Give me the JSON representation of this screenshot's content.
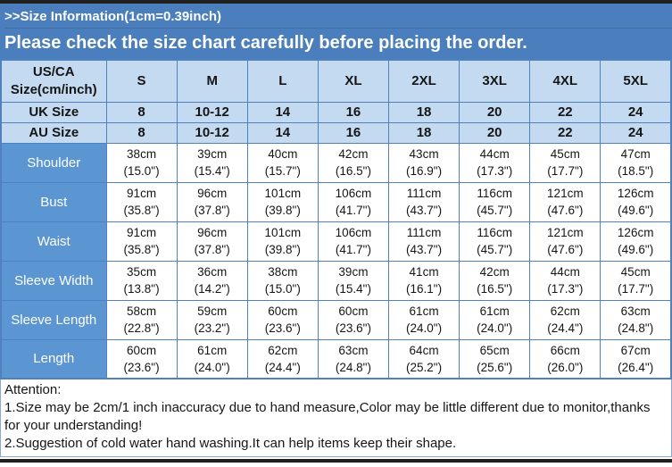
{
  "banner": {
    "title": ">>Size Information(1cm=0.39inch)",
    "subtitle": "Please check the size chart carefully before placing the order."
  },
  "table": {
    "corner_label": "US/CA Size(cm/inch)",
    "size_headers": [
      "S",
      "M",
      "L",
      "XL",
      "2XL",
      "3XL",
      "4XL",
      "5XL"
    ],
    "uk": {
      "label": "UK Size",
      "values": [
        "8",
        "10-12",
        "14",
        "16",
        "18",
        "20",
        "22",
        "24"
      ]
    },
    "au": {
      "label": "AU Size",
      "values": [
        "8",
        "10-12",
        "14",
        "16",
        "18",
        "20",
        "22",
        "24"
      ]
    },
    "rows": [
      {
        "label": "Shoulder",
        "cm": [
          "38cm",
          "39cm",
          "40cm",
          "42cm",
          "43cm",
          "44cm",
          "45cm",
          "47cm"
        ],
        "inch": [
          "(15.0\")",
          "(15.4\")",
          "(15.7\")",
          "(16.5\")",
          "(16.9\")",
          "(17.3\")",
          "(17.7\")",
          "(18.5\")"
        ]
      },
      {
        "label": "Bust",
        "cm": [
          "91cm",
          "96cm",
          "101cm",
          "106cm",
          "111cm",
          "116cm",
          "121cm",
          "126cm"
        ],
        "inch": [
          "(35.8\")",
          "(37.8\")",
          "(39.8\")",
          "(41.7\")",
          "(43.7\")",
          "(45.7\")",
          "(47.6\")",
          "(49.6\")"
        ]
      },
      {
        "label": "Waist",
        "cm": [
          "91cm",
          "96cm",
          "101cm",
          "106cm",
          "111cm",
          "116cm",
          "121cm",
          "126cm"
        ],
        "inch": [
          "(35.8\")",
          "(37.8\")",
          "(39.8\")",
          "(41.7\")",
          "(43.7\")",
          "(45.7\")",
          "(47.6\")",
          "(49.6\")"
        ]
      },
      {
        "label": "Sleeve Width",
        "cm": [
          "35cm",
          "36cm",
          "38cm",
          "39cm",
          "41cm",
          "42cm",
          "44cm",
          "45cm"
        ],
        "inch": [
          "(13.8\")",
          "(14.2\")",
          "(15.0\")",
          "(15.4\")",
          "(16.1\")",
          "(16.5\")",
          "(17.3\")",
          "(17.7\")"
        ]
      },
      {
        "label": "Sleeve Length",
        "cm": [
          "58cm",
          "59cm",
          "60cm",
          "60cm",
          "61cm",
          "61cm",
          "62cm",
          "63cm"
        ],
        "inch": [
          "(22.8\")",
          "(23.2\")",
          "(23.6\")",
          "(23.6\")",
          "(24.0\")",
          "(24.0\")",
          "(24.4\")",
          "(24.8\")"
        ]
      },
      {
        "label": "Length",
        "cm": [
          "60cm",
          "61cm",
          "62cm",
          "63cm",
          "64cm",
          "65cm",
          "66cm",
          "67cm"
        ],
        "inch": [
          "(23.6\")",
          "(24.0\")",
          "(24.4\")",
          "(24.8\")",
          "(25.2\")",
          "(25.6\")",
          "(26.0\")",
          "(26.4\")"
        ]
      }
    ]
  },
  "attention": {
    "heading": "Attention:",
    "note1": "1.Size may be 2cm/1 inch inaccuracy due to hand measure,Color may be little different due to monitor,thanks for your understanding!",
    "note2": "2.Suggestion of cold water hand washing.It can help items keep their shape."
  },
  "colors": {
    "bar": "#1f1f1f",
    "banner": "#4a7ebc",
    "border": "#4f81bd",
    "light": "#c4daf1",
    "label": "#5b95d2",
    "attn-border": "#89a9d0"
  }
}
